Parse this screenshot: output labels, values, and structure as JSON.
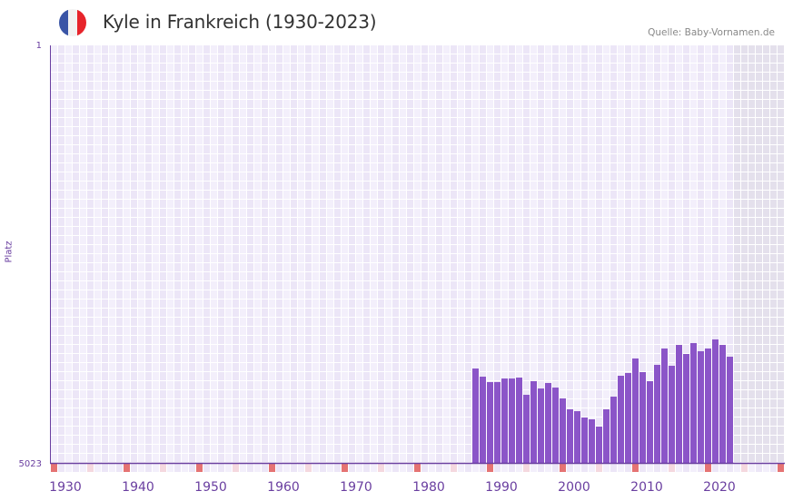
{
  "header": {
    "title": "Kyle in Frankreich (1930-2023)",
    "source": "Quelle: Baby-Vornamen.de",
    "flag_colors": [
      "#3a55a6",
      "#f2f2f2",
      "#e7242b"
    ]
  },
  "chart_data": {
    "type": "bar",
    "title": "Kyle in Frankreich (1930-2023)",
    "xlabel": "",
    "ylabel": "Platz",
    "xlim": [
      1930,
      2030
    ],
    "ylim": [
      5023,
      1
    ],
    "y_tick_labels": [
      "1",
      "5023"
    ],
    "x_tick_labels": [
      "1930",
      "1940",
      "1950",
      "1960",
      "1970",
      "1980",
      "1990",
      "2000",
      "2010",
      "2020"
    ],
    "x": [
      1988,
      1989,
      1990,
      1991,
      1992,
      1993,
      1994,
      1995,
      1996,
      1997,
      1998,
      1999,
      2000,
      2001,
      2002,
      2003,
      2004,
      2005,
      2006,
      2007,
      2008,
      2009,
      2010,
      2011,
      2012,
      2013,
      2014,
      2015,
      2016,
      2017,
      2018,
      2019,
      2020,
      2021,
      2022,
      2023
    ],
    "values": [
      3888,
      3986,
      4051,
      4051,
      4008,
      4008,
      3997,
      4204,
      4040,
      4128,
      4062,
      4117,
      4248,
      4379,
      4401,
      4477,
      4499,
      4586,
      4379,
      4226,
      3975,
      3942,
      3767,
      3931,
      4040,
      3844,
      3647,
      3855,
      3604,
      3713,
      3582,
      3680,
      3647,
      3538,
      3604,
      3746
    ],
    "future_from": 2024,
    "colors": {
      "bar": "#8b55c8",
      "axis": "#6a3fa0",
      "decade_marker": "#e57373",
      "half_marker": "#f5d8df",
      "grid_a": "#f3effb",
      "grid_b": "#ece6f7",
      "future": "#e4e0ec"
    }
  }
}
